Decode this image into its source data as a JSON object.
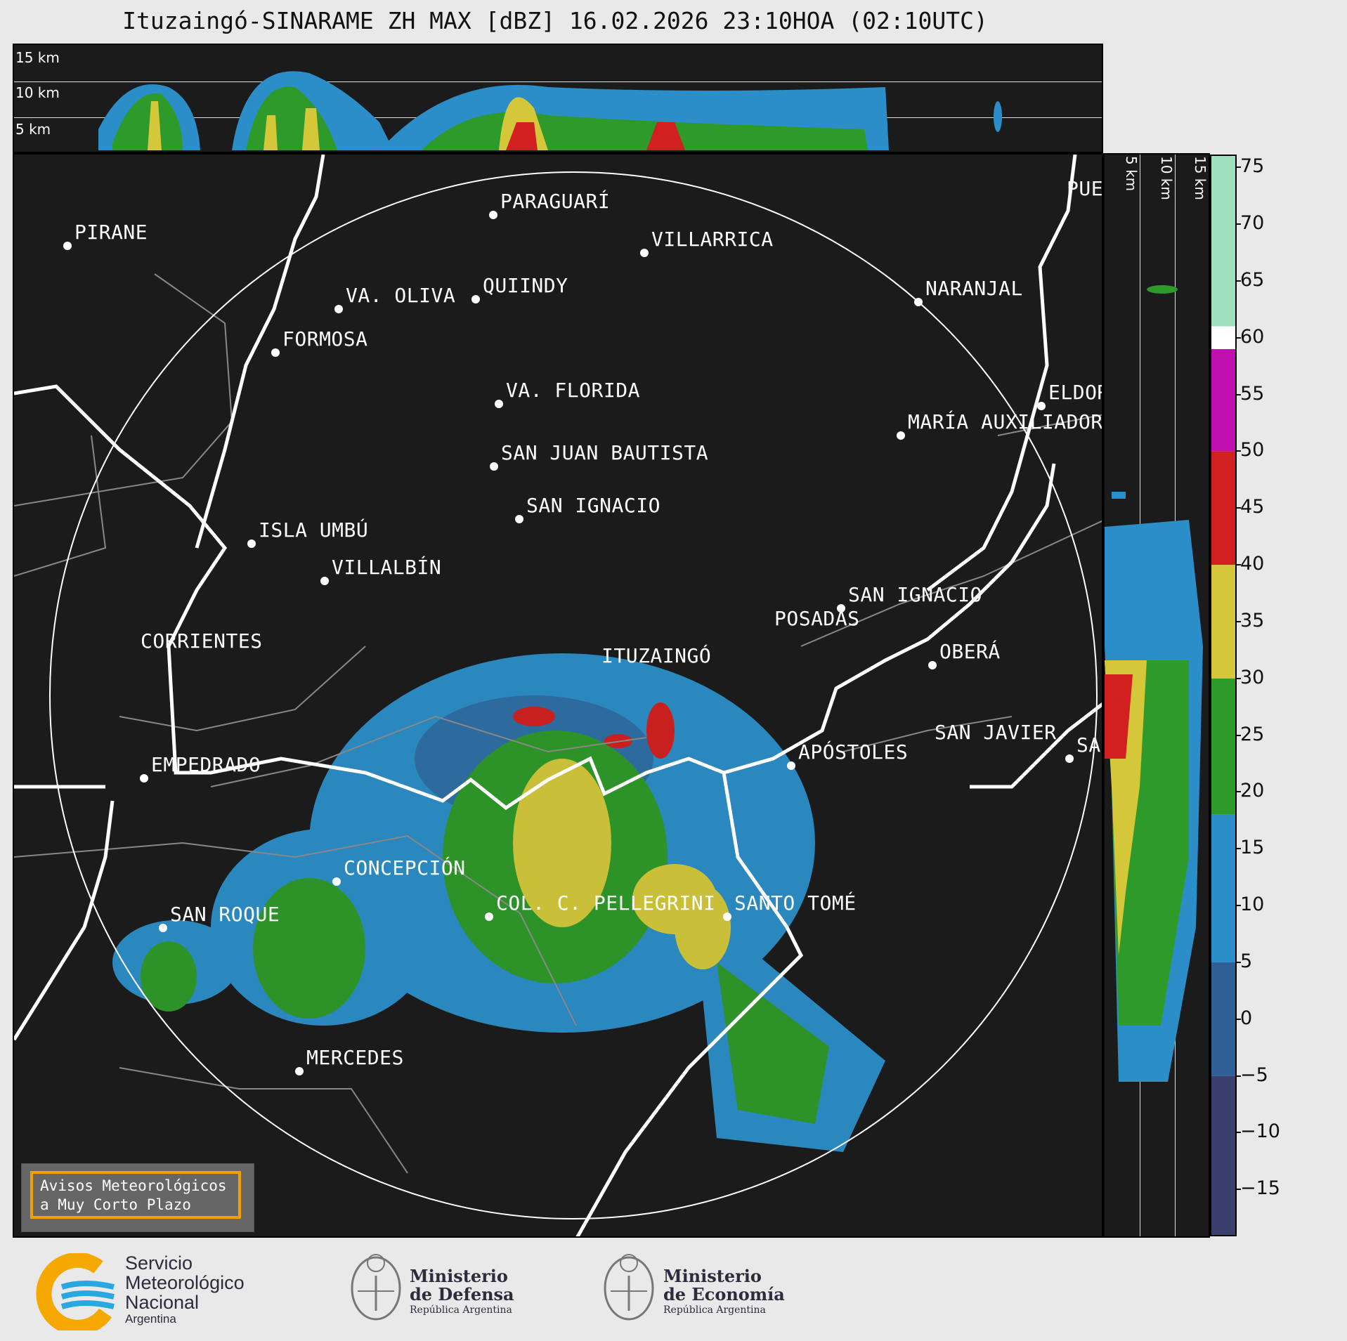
{
  "title": "Ituzaingó-SINARAME ZH MAX [dBZ] 16.02.2026 23:10HOA (02:10UTC)",
  "top_profile": {
    "height_labels": [
      "15 km",
      "10 km",
      "5 km"
    ]
  },
  "side_profile": {
    "height_labels": [
      "5 km",
      "10 km",
      "15 km"
    ]
  },
  "colorbar": {
    "unit": "dBZ",
    "ticks": [
      "75",
      "70",
      "65",
      "60",
      "55",
      "50",
      "45",
      "40",
      "35",
      "30",
      "25",
      "20",
      "15",
      "10",
      "5",
      "0",
      "−5",
      "−10",
      "−15"
    ],
    "tick_values": [
      75,
      70,
      65,
      60,
      55,
      50,
      45,
      40,
      35,
      30,
      25,
      20,
      15,
      10,
      5,
      0,
      -5,
      -10,
      -15
    ],
    "range": [
      -19,
      76
    ],
    "bands": [
      {
        "from": -19,
        "to": -5,
        "color": "#3b3f6e"
      },
      {
        "from": -5,
        "to": 5,
        "color": "#2f5f95"
      },
      {
        "from": 5,
        "to": 18,
        "color": "#2b8ec8"
      },
      {
        "from": 18,
        "to": 30,
        "color": "#2e9a2a"
      },
      {
        "from": 30,
        "to": 40,
        "color": "#d4c83a"
      },
      {
        "from": 40,
        "to": 50,
        "color": "#d22020"
      },
      {
        "from": 50,
        "to": 59,
        "color": "#c010b0"
      },
      {
        "from": 59,
        "to": 61,
        "color": "#ffffff"
      },
      {
        "from": 61,
        "to": 76,
        "color": "#9fe0c0"
      }
    ]
  },
  "map": {
    "cities": [
      {
        "name": "PIRANE"
      },
      {
        "name": "PARAGUARÍ"
      },
      {
        "name": "VILLARRICA"
      },
      {
        "name": "VA. OLIVA"
      },
      {
        "name": "QUIINDY"
      },
      {
        "name": "NARANJAL"
      },
      {
        "name": "FORMOSA"
      },
      {
        "name": "VA. FLORIDA"
      },
      {
        "name": "ELDOR"
      },
      {
        "name": "MARÍA AUXILIADOR"
      },
      {
        "name": "SAN JUAN BAUTISTA"
      },
      {
        "name": "SAN IGNACIO"
      },
      {
        "name": "ISLA UMBÚ"
      },
      {
        "name": "VILLALBÍN"
      },
      {
        "name": "SAN IGNACIO"
      },
      {
        "name": "POSADAS"
      },
      {
        "name": "CORRIENTES"
      },
      {
        "name": "ITUZAINGÓ"
      },
      {
        "name": "OBERÁ"
      },
      {
        "name": "APÓSTOLES"
      },
      {
        "name": "SAN JAVIER"
      },
      {
        "name": "SAN"
      },
      {
        "name": "EMPEDRADO"
      },
      {
        "name": "CONCEPCIÓN"
      },
      {
        "name": "COL. C. PELLEGRINI"
      },
      {
        "name": "SANTO TOMÉ"
      },
      {
        "name": "SAN ROQUE"
      },
      {
        "name": "MERCEDES"
      },
      {
        "name": "PUE"
      }
    ]
  },
  "notice": {
    "line1": "Avisos Meteorológicos",
    "line2": "a Muy Corto Plazo"
  },
  "logos": {
    "smn": {
      "line1": "Servicio",
      "line2": "Meteorológico",
      "line3": "Nacional",
      "line4": "Argentina",
      "colors": [
        "#f5a800",
        "#29a8e0"
      ]
    },
    "defensa": {
      "line1": "Ministerio",
      "line2": "de Defensa",
      "line3": "República Argentina"
    },
    "economia": {
      "line1": "Ministerio",
      "line2": "de Economía",
      "line3": "República Argentina"
    }
  }
}
